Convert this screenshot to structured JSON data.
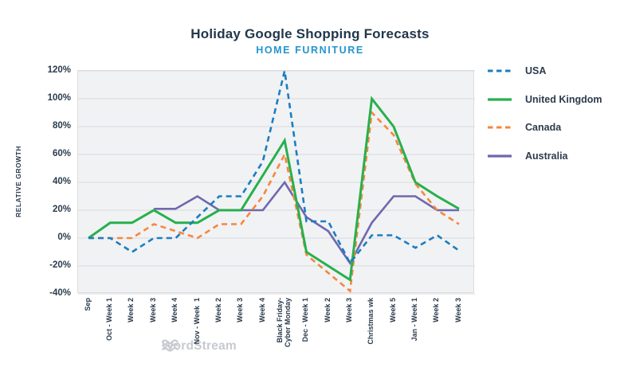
{
  "header": {
    "title": "Holiday Google Shopping Forecasts",
    "subtitle": "HOME FURNITURE"
  },
  "watermark": {
    "text": "WordStream"
  },
  "colors": {
    "title_text": "#22374a",
    "subtitle_text": "#2395cf",
    "axis_text": "#2b3b4d",
    "plot_background": "#f1f2f4",
    "gridline": "#d9dade",
    "watermark": "#c7cad0",
    "usa": "#1a7ec1",
    "united_kingdom": "#27b04c",
    "canada": "#f6873c",
    "australia": "#6f68ae"
  },
  "chart_data": {
    "type": "line",
    "title": "Holiday Google Shopping Forecasts",
    "subtitle": "HOME FURNITURE",
    "xlabel": "",
    "ylabel": "RELATIVE GROWTH",
    "ylim": [
      -40,
      120
    ],
    "ytick_step": 20,
    "ytick_format": "percent",
    "grid": true,
    "legend_position": "right",
    "categories": [
      "Sep",
      "Oct - Week 1",
      "Week 2",
      "Week 3",
      "Week 4",
      "Nov - Week  1",
      "Week 2",
      "Week 3",
      "Week 4",
      "Black Friday-\nCyber Monday",
      "Dec - Week 1",
      "Week 2",
      "Week 3",
      "Christmas wk",
      "Week 5",
      "Jan - Week 1",
      "Week 2",
      "Week 3"
    ],
    "series": [
      {
        "name": "USA",
        "color": "#1a7ec1",
        "dash": true,
        "width": 2.6,
        "values": [
          0,
          0,
          -10,
          0,
          0,
          15,
          30,
          30,
          55,
          120,
          12,
          12,
          -18,
          2,
          2,
          -7,
          2,
          -9
        ]
      },
      {
        "name": "United Kingdom",
        "color": "#27b04c",
        "dash": false,
        "width": 3,
        "values": [
          0,
          11,
          11,
          20,
          11,
          11,
          20,
          20,
          45,
          70,
          -10,
          -20,
          -30,
          100,
          80,
          40,
          30,
          21
        ]
      },
      {
        "name": "Canada",
        "color": "#f6873c",
        "dash": true,
        "width": 2.6,
        "values": [
          0,
          0,
          0,
          10,
          5,
          0,
          10,
          10,
          30,
          60,
          -12,
          -25,
          -38,
          90,
          74,
          39,
          20,
          10
        ]
      },
      {
        "name": "Australia",
        "color": "#6f68ae",
        "dash": false,
        "width": 2.6,
        "values": [
          null,
          null,
          null,
          21,
          21,
          30,
          20,
          20,
          20,
          40,
          15,
          5,
          -18,
          11,
          30,
          30,
          20,
          20
        ]
      }
    ]
  }
}
